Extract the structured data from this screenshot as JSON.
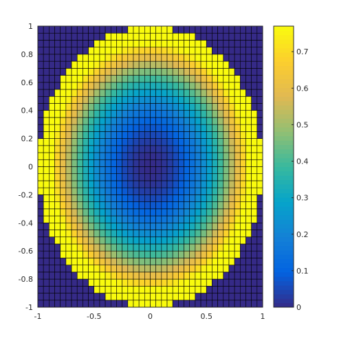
{
  "chart_data": {
    "type": "heatmap",
    "title": "",
    "xlabel": "",
    "ylabel": "",
    "xlim": [
      -1,
      1
    ],
    "ylim": [
      -1,
      1
    ],
    "grid_size": 40,
    "cell_edge_color": "#000000",
    "outside_value": 0,
    "value_function": "r^2 for r < 1, else 0",
    "x_ticks": [
      -1,
      -0.5,
      0,
      0.5,
      1
    ],
    "x_tick_labels": [
      "-1",
      "-0.5",
      "0",
      "0.5",
      "1"
    ],
    "y_ticks": [
      -1,
      -0.8,
      -0.6,
      -0.4,
      -0.2,
      0,
      0.2,
      0.4,
      0.6,
      0.8,
      1
    ],
    "y_tick_labels": [
      "-1",
      "-0.8",
      "-0.6",
      "-0.4",
      "-0.2",
      "0",
      "0.2",
      "0.4",
      "0.6",
      "0.8",
      "1"
    ],
    "colorbar": {
      "colormap": "parula",
      "clim": [
        0,
        0.77
      ],
      "ticks": [
        0,
        0.1,
        0.2,
        0.3,
        0.4,
        0.5,
        0.6,
        0.7
      ],
      "tick_labels": [
        "0",
        "0.1",
        "0.2",
        "0.3",
        "0.4",
        "0.5",
        "0.6",
        "0.7"
      ]
    },
    "colors": {
      "low": "#352a87",
      "high": "#f9fb0e"
    }
  }
}
